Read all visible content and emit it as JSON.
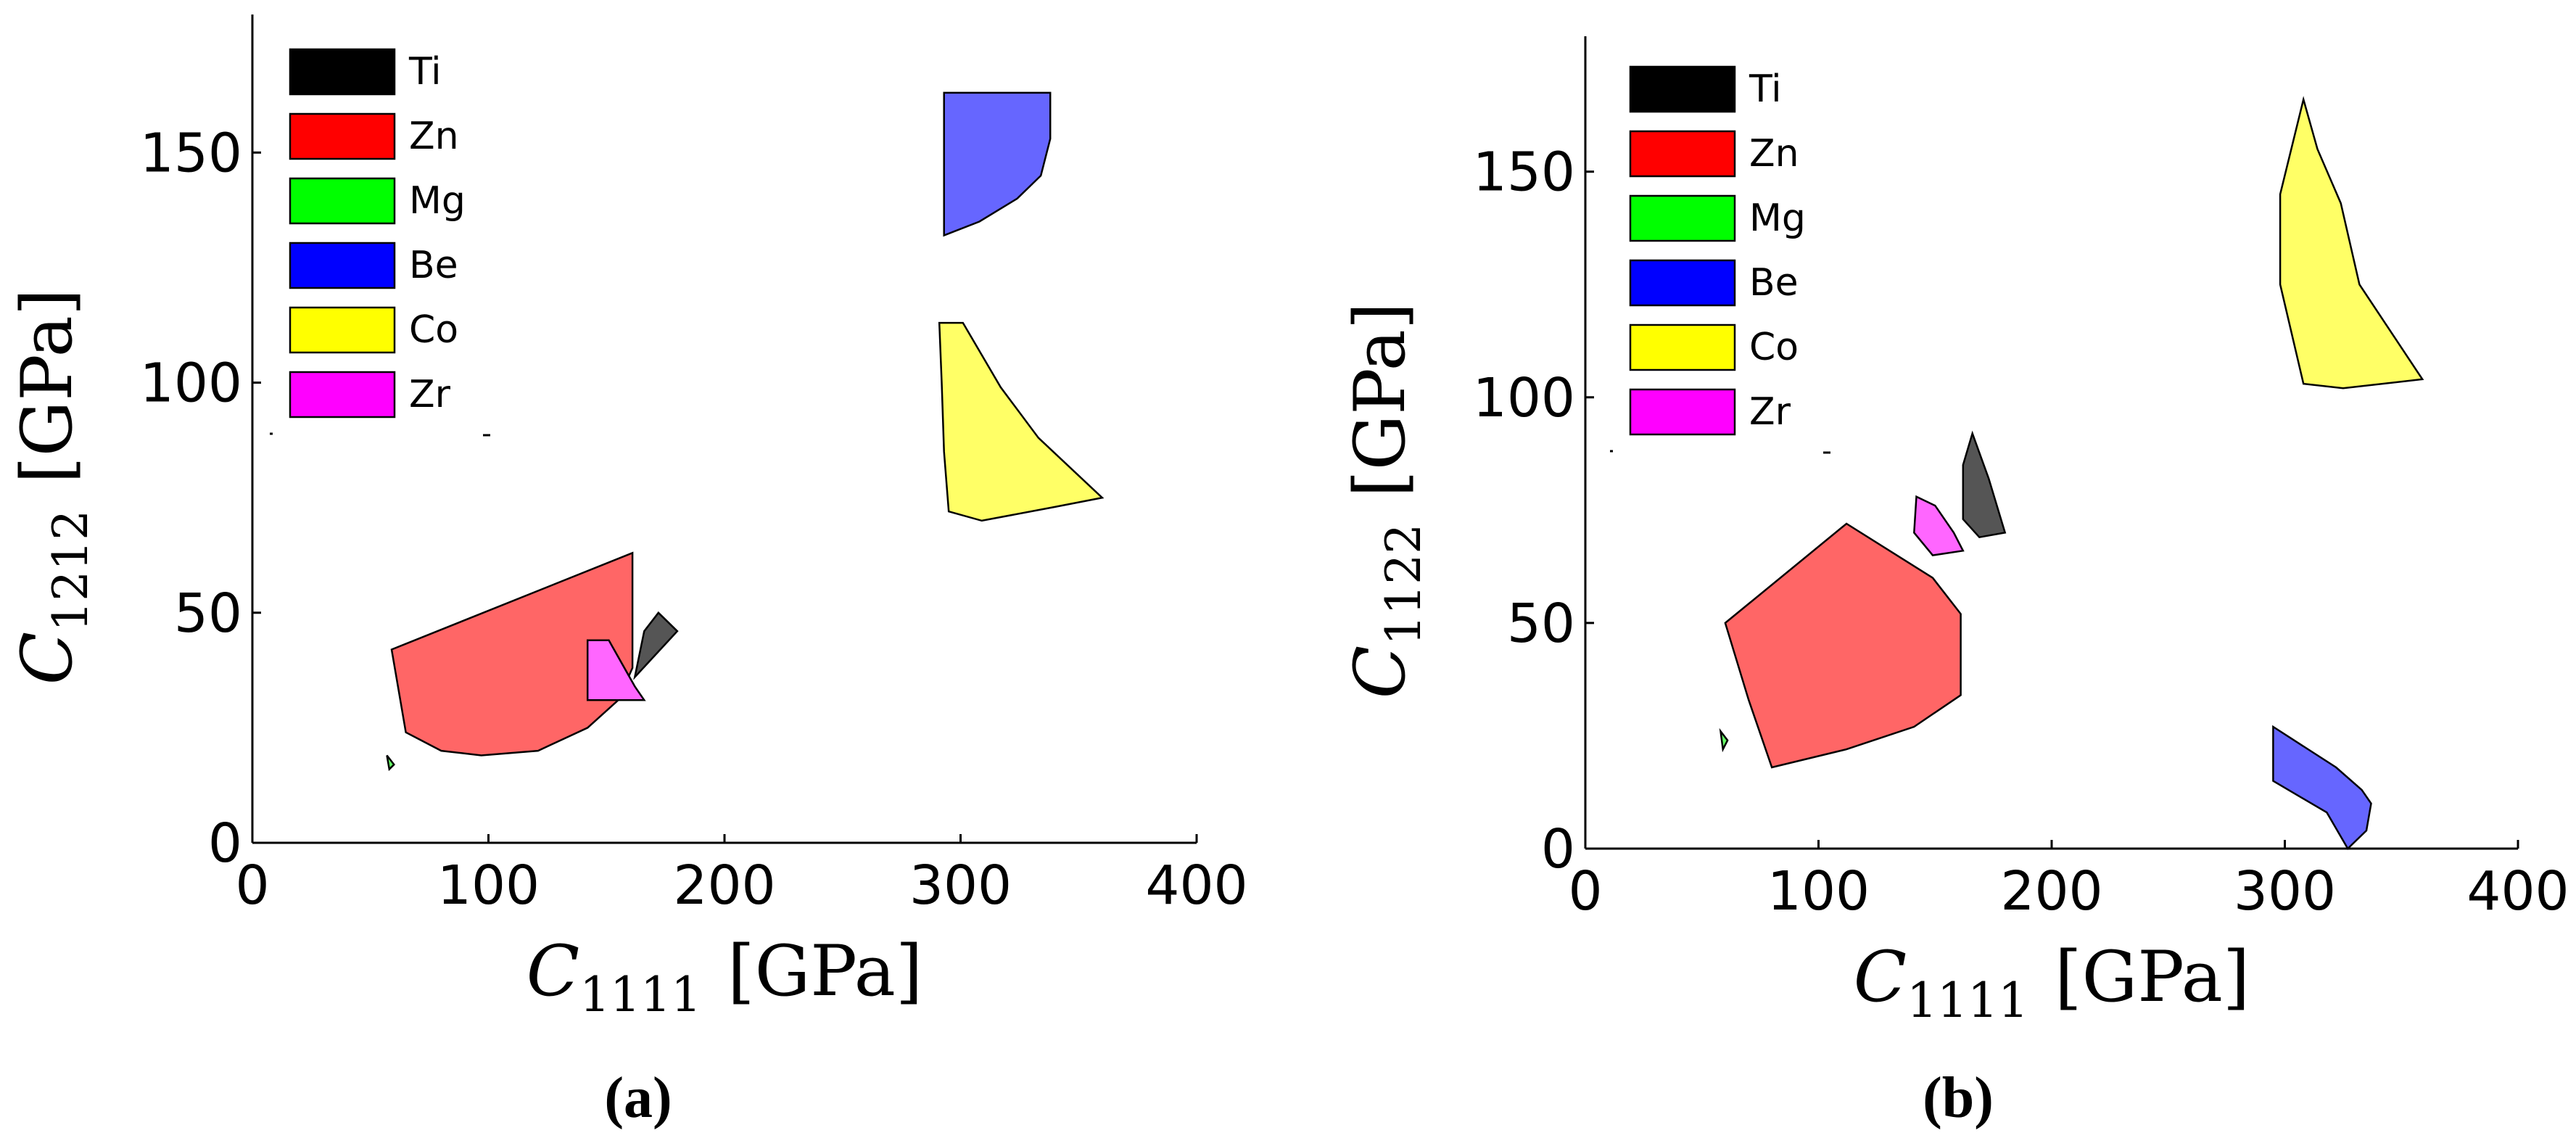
{
  "chart_data": [
    {
      "type": "area",
      "panel": "a",
      "caption_open": "(",
      "caption_letter": "a",
      "caption_close": ")",
      "xlabel_symbol": "C",
      "xlabel_subscript": "1111",
      "xlabel_unit": "[GPa]",
      "ylabel_symbol": "C",
      "ylabel_subscript": "1212",
      "ylabel_unit": "[GPa]",
      "xlim": [
        0,
        400
      ],
      "ylim": [
        0,
        180
      ],
      "xticks": [
        0,
        100,
        200,
        300,
        400
      ],
      "yticks": [
        0,
        50,
        100,
        150
      ],
      "legend_position": "top-left",
      "legend": [
        {
          "name": "Ti",
          "color": "#000000"
        },
        {
          "name": "Zn",
          "color": "#ff0000"
        },
        {
          "name": "Mg",
          "color": "#00ff00"
        },
        {
          "name": "Be",
          "color": "#0000ff"
        },
        {
          "name": "Co",
          "color": "#ffff00"
        },
        {
          "name": "Zr",
          "color": "#ff00ff"
        }
      ],
      "series": [
        {
          "name": "Zn",
          "color": "#ff6666",
          "points": [
            [
              59,
              42
            ],
            [
              161,
              63
            ],
            [
              161,
              38
            ],
            [
              155,
              31
            ],
            [
              142,
              25
            ],
            [
              121,
              20
            ],
            [
              97,
              19
            ],
            [
              80,
              20
            ],
            [
              65,
              24
            ],
            [
              62,
              33
            ]
          ]
        },
        {
          "name": "Co",
          "color": "#ffff66",
          "points": [
            [
              291,
              113
            ],
            [
              301,
              113
            ],
            [
              317,
              99
            ],
            [
              333,
              88
            ],
            [
              360,
              75
            ],
            [
              340,
              73
            ],
            [
              309,
              70
            ],
            [
              295,
              72
            ],
            [
              293,
              85
            ],
            [
              292,
              100
            ]
          ]
        },
        {
          "name": "Be",
          "color": "#6666ff",
          "points": [
            [
              293,
              163
            ],
            [
              338,
              163
            ],
            [
              338,
              153
            ],
            [
              334,
              145
            ],
            [
              324,
              140
            ],
            [
              308,
              135
            ],
            [
              293,
              132
            ]
          ]
        },
        {
          "name": "Ti",
          "color": "#555555",
          "points": [
            [
              162,
              36
            ],
            [
              166,
              46
            ],
            [
              172,
              50
            ],
            [
              180,
              46
            ]
          ]
        },
        {
          "name": "Zr",
          "color": "#ff66ff",
          "points": [
            [
              142,
              44
            ],
            [
              151,
              44
            ],
            [
              162,
              34
            ],
            [
              166,
              31
            ],
            [
              142,
              31
            ]
          ]
        },
        {
          "name": "Mg",
          "color": "#66ff66",
          "points": [
            [
              57,
              19
            ],
            [
              60,
              17
            ],
            [
              58,
              16
            ]
          ]
        }
      ]
    },
    {
      "type": "area",
      "panel": "b",
      "caption_open": "(",
      "caption_letter": "b",
      "caption_close": ")",
      "xlabel_symbol": "C",
      "xlabel_subscript": "1111",
      "xlabel_unit": "[GPa]",
      "ylabel_symbol": "C",
      "ylabel_subscript": "1122",
      "ylabel_unit": "[GPa]",
      "xlim": [
        0,
        400
      ],
      "ylim": [
        0,
        180
      ],
      "xticks": [
        0,
        100,
        200,
        300,
        400
      ],
      "yticks": [
        0,
        50,
        100,
        150
      ],
      "legend_position": "top-left",
      "legend": [
        {
          "name": "Ti",
          "color": "#000000"
        },
        {
          "name": "Zn",
          "color": "#ff0000"
        },
        {
          "name": "Mg",
          "color": "#00ff00"
        },
        {
          "name": "Be",
          "color": "#0000ff"
        },
        {
          "name": "Co",
          "color": "#ffff00"
        },
        {
          "name": "Zr",
          "color": "#ff00ff"
        }
      ],
      "series": [
        {
          "name": "Zn",
          "color": "#ff6666",
          "points": [
            [
              60,
              50
            ],
            [
              112,
              72
            ],
            [
              149,
              60
            ],
            [
              161,
              52
            ],
            [
              161,
              34
            ],
            [
              141,
              27
            ],
            [
              112,
              22
            ],
            [
              80,
              18
            ],
            [
              70,
              33
            ]
          ]
        },
        {
          "name": "Co",
          "color": "#ffff66",
          "points": [
            [
              308,
              166
            ],
            [
              314,
              155
            ],
            [
              324,
              143
            ],
            [
              332,
              125
            ],
            [
              359,
              104
            ],
            [
              325,
              102
            ],
            [
              308,
              103
            ],
            [
              298,
              125
            ],
            [
              298,
              145
            ]
          ]
        },
        {
          "name": "Be",
          "color": "#6666ff",
          "points": [
            [
              295,
              27
            ],
            [
              307,
              23
            ],
            [
              322,
              18
            ],
            [
              333,
              13
            ],
            [
              337,
              10
            ],
            [
              335,
              4
            ],
            [
              327,
              0
            ],
            [
              318,
              8
            ],
            [
              295,
              15
            ]
          ]
        },
        {
          "name": "Ti",
          "color": "#555555",
          "points": [
            [
              166,
              92
            ],
            [
              173,
              82
            ],
            [
              180,
              70
            ],
            [
              169,
              69
            ],
            [
              162,
              73
            ],
            [
              162,
              85
            ]
          ]
        },
        {
          "name": "Zr",
          "color": "#ff66ff",
          "points": [
            [
              142,
              78
            ],
            [
              150,
              76
            ],
            [
              158,
              70
            ],
            [
              162,
              66
            ],
            [
              149,
              65
            ],
            [
              141,
              70
            ]
          ]
        },
        {
          "name": "Mg",
          "color": "#66ff66",
          "points": [
            [
              58,
              26
            ],
            [
              61,
              24
            ],
            [
              59,
              22
            ]
          ]
        }
      ]
    }
  ]
}
